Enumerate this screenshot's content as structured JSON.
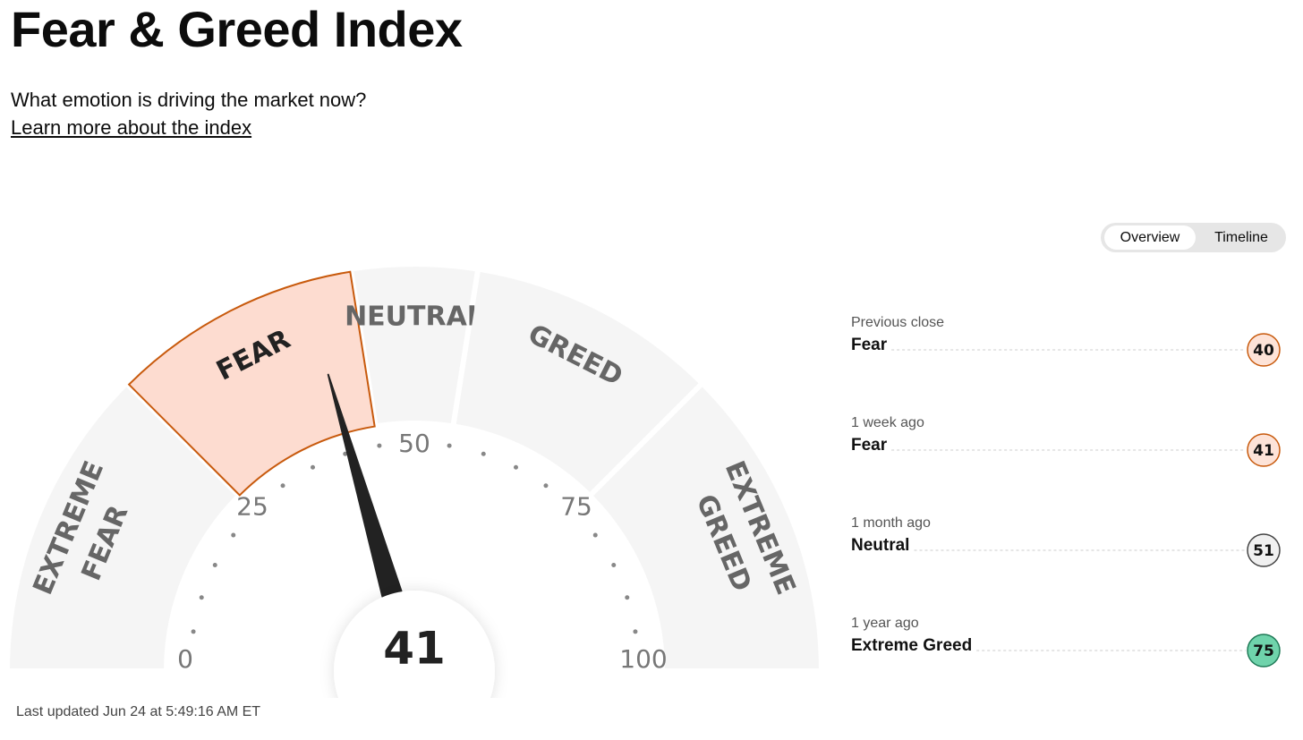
{
  "header": {
    "title": "Fear & Greed Index",
    "subtitle": "What emotion is driving the market now?",
    "link": "Learn more about the index"
  },
  "tabs": [
    "Overview",
    "Timeline"
  ],
  "gauge": {
    "value": 41,
    "ticks": [
      0,
      25,
      50,
      75,
      100
    ],
    "segments": [
      [
        "EXTREME",
        "FEAR"
      ],
      [
        "FEAR"
      ],
      [
        "NEUTRAL"
      ],
      [
        "GREED"
      ],
      [
        "EXTREME",
        "GREED"
      ]
    ]
  },
  "history": [
    {
      "period": "Previous close",
      "label": "Fear",
      "value": 40,
      "color": "#fde3d8"
    },
    {
      "period": "1 week ago",
      "label": "Fear",
      "value": 41,
      "color": "#fde3d8"
    },
    {
      "period": "1 month ago",
      "label": "Neutral",
      "value": 51,
      "color": "#f0f0f0"
    },
    {
      "period": "1 year ago",
      "label": "Extreme Greed",
      "value": 75,
      "color": "#6fd3ab"
    }
  ],
  "footer": "Last updated Jun 24 at 5:49:16 AM ET"
}
